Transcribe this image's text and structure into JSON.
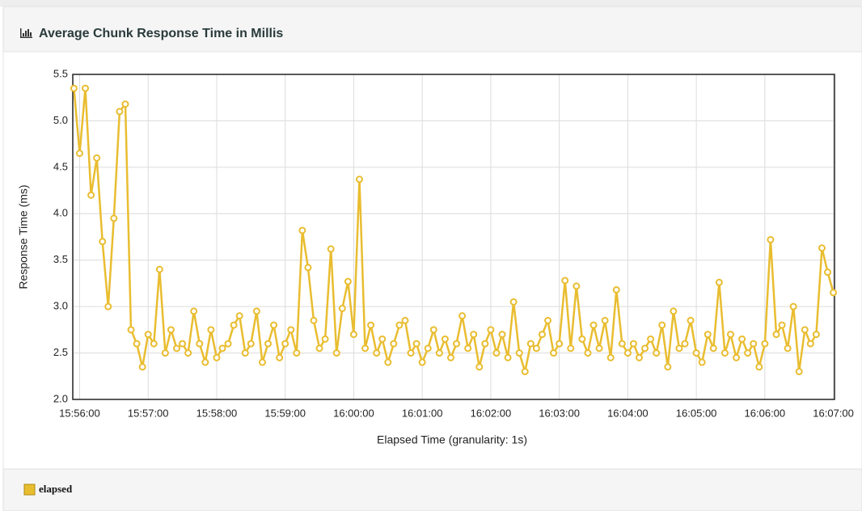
{
  "chart_data": {
    "type": "line",
    "title": "Average Chunk Response Time in Millis",
    "x_label": "Elapsed Time (granularity: 1s)",
    "y_label": "Response Time (ms)",
    "x": [
      "15:55:55",
      "15:56:00",
      "15:56:05",
      "15:56:10",
      "15:56:15",
      "15:56:20",
      "15:56:25",
      "15:56:30",
      "15:56:35",
      "15:56:40",
      "15:56:45",
      "15:56:50",
      "15:56:55",
      "15:57:00",
      "15:57:05",
      "15:57:10",
      "15:57:15",
      "15:57:20",
      "15:57:25",
      "15:57:30",
      "15:57:35",
      "15:57:40",
      "15:57:45",
      "15:57:50",
      "15:57:55",
      "15:58:00",
      "15:58:05",
      "15:58:10",
      "15:58:15",
      "15:58:20",
      "15:58:25",
      "15:58:30",
      "15:58:35",
      "15:58:40",
      "15:58:45",
      "15:58:50",
      "15:58:55",
      "15:59:00",
      "15:59:05",
      "15:59:10",
      "15:59:15",
      "15:59:20",
      "15:59:25",
      "15:59:30",
      "15:59:35",
      "15:59:40",
      "15:59:45",
      "15:59:50",
      "15:59:55",
      "16:00:00",
      "16:00:05",
      "16:00:10",
      "16:00:15",
      "16:00:20",
      "16:00:25",
      "16:00:30",
      "16:00:35",
      "16:00:40",
      "16:00:45",
      "16:00:50",
      "16:00:55",
      "16:01:00",
      "16:01:05",
      "16:01:10",
      "16:01:15",
      "16:01:20",
      "16:01:25",
      "16:01:30",
      "16:01:35",
      "16:01:40",
      "16:01:45",
      "16:01:50",
      "16:01:55",
      "16:02:00",
      "16:02:05",
      "16:02:10",
      "16:02:15",
      "16:02:20",
      "16:02:25",
      "16:02:30",
      "16:02:35",
      "16:02:40",
      "16:02:45",
      "16:02:50",
      "16:02:55",
      "16:03:00",
      "16:03:05",
      "16:03:10",
      "16:03:15",
      "16:03:20",
      "16:03:25",
      "16:03:30",
      "16:03:35",
      "16:03:40",
      "16:03:45",
      "16:03:50",
      "16:03:55",
      "16:04:00",
      "16:04:05",
      "16:04:10",
      "16:04:15",
      "16:04:20",
      "16:04:25",
      "16:04:30",
      "16:04:35",
      "16:04:40",
      "16:04:45",
      "16:04:50",
      "16:04:55",
      "16:05:00",
      "16:05:05",
      "16:05:10",
      "16:05:15",
      "16:05:20",
      "16:05:25",
      "16:05:30",
      "16:05:35",
      "16:05:40",
      "16:05:45",
      "16:05:50",
      "16:05:55",
      "16:06:00",
      "16:06:05",
      "16:06:10",
      "16:06:15",
      "16:06:20",
      "16:06:25",
      "16:06:30",
      "16:06:35",
      "16:06:40",
      "16:06:45",
      "16:06:50",
      "16:06:55",
      "16:07:00"
    ],
    "series": [
      {
        "name": "elapsed",
        "color": "#e9bd30",
        "values": [
          5.35,
          4.65,
          5.35,
          4.2,
          4.6,
          3.7,
          3.0,
          3.95,
          5.1,
          5.18,
          2.75,
          2.6,
          2.35,
          2.7,
          2.6,
          3.4,
          2.5,
          2.75,
          2.55,
          2.6,
          2.5,
          2.95,
          2.6,
          2.4,
          2.75,
          2.45,
          2.55,
          2.6,
          2.8,
          2.9,
          2.5,
          2.6,
          2.95,
          2.4,
          2.6,
          2.8,
          2.45,
          2.6,
          2.75,
          2.5,
          3.82,
          3.42,
          2.85,
          2.55,
          2.65,
          3.62,
          2.5,
          2.98,
          3.27,
          2.7,
          4.37,
          2.55,
          2.8,
          2.5,
          2.65,
          2.4,
          2.6,
          2.8,
          2.85,
          2.5,
          2.6,
          2.4,
          2.55,
          2.75,
          2.5,
          2.65,
          2.45,
          2.6,
          2.9,
          2.55,
          2.7,
          2.35,
          2.6,
          2.75,
          2.5,
          2.7,
          2.45,
          3.05,
          2.5,
          2.3,
          2.6,
          2.55,
          2.7,
          2.85,
          2.5,
          2.6,
          3.28,
          2.55,
          3.22,
          2.65,
          2.5,
          2.8,
          2.55,
          2.85,
          2.45,
          3.18,
          2.6,
          2.5,
          2.6,
          2.45,
          2.55,
          2.65,
          2.5,
          2.8,
          2.35,
          2.95,
          2.55,
          2.6,
          2.85,
          2.5,
          2.4,
          2.7,
          2.55,
          3.26,
          2.5,
          2.7,
          2.45,
          2.65,
          2.5,
          2.6,
          2.35,
          2.6,
          3.72,
          2.7,
          2.8,
          2.55,
          3.0,
          2.3,
          2.75,
          2.6,
          2.7,
          3.63,
          3.37,
          3.15
        ]
      }
    ],
    "xlim": [
      "15:55:54",
      "16:07:01"
    ],
    "xticks": [
      "15:56:00",
      "15:57:00",
      "15:58:00",
      "15:59:00",
      "16:00:00",
      "16:01:00",
      "16:02:00",
      "16:03:00",
      "16:04:00",
      "16:05:00",
      "16:06:00",
      "16:07:00"
    ],
    "ylim": [
      2,
      5.5
    ],
    "yticks": [
      {
        "value": 2,
        "label": "2.0"
      },
      2.5,
      {
        "value": 3,
        "label": "3.0"
      },
      3.5,
      {
        "value": 4,
        "label": "4.0"
      },
      4.5,
      {
        "value": 5,
        "label": "5.0"
      },
      5.5
    ],
    "grid": true,
    "markers": true,
    "legend": "bottom"
  }
}
